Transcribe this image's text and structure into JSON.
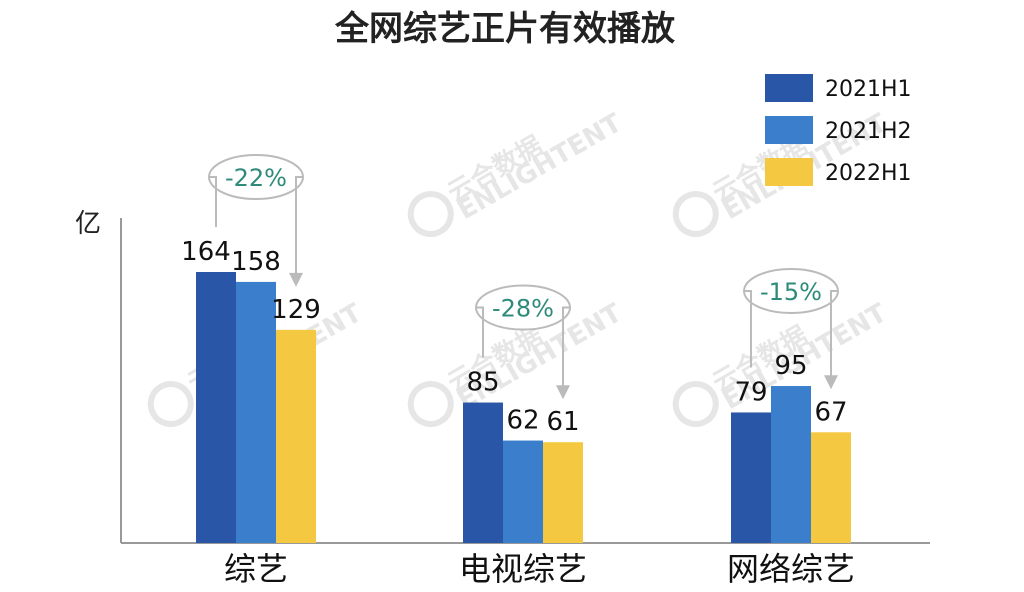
{
  "chart_data": {
    "type": "bar",
    "title": "全网综艺正片有效播放",
    "unit_label": "亿",
    "categories": [
      "综艺",
      "电视综艺",
      "网络综艺"
    ],
    "series": [
      {
        "name": "2021H1",
        "color": "#2a56a8",
        "values": [
          164,
          85,
          79
        ]
      },
      {
        "name": "2021H2",
        "color": "#3b7fcc",
        "values": [
          158,
          62,
          95
        ]
      },
      {
        "name": "2022H1",
        "color": "#f5c842",
        "values": [
          129,
          61,
          67
        ]
      }
    ],
    "changes": [
      "-22%",
      "-28%",
      "-15%"
    ],
    "legend_position": "top-right",
    "grid": false,
    "ylim": [
      0,
      164
    ]
  },
  "watermark": {
    "text": "云合数据",
    "subtext": "ENLIGHTENT"
  }
}
